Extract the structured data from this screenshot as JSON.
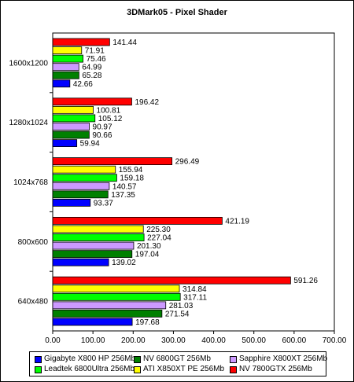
{
  "chart_data": {
    "type": "bar",
    "orientation": "horizontal",
    "title": "3DMark05 - Pixel Shader",
    "xlabel": "",
    "ylabel": "",
    "xlim": [
      0,
      700
    ],
    "x_ticks": [
      "0.00",
      "100.00",
      "200.00",
      "300.00",
      "400.00",
      "500.00",
      "600.00",
      "700.00"
    ],
    "grid": false,
    "legend_position": "bottom",
    "categories": [
      "1600x1200",
      "1280x1024",
      "1024x768",
      "800x600",
      "640x480"
    ],
    "series": [
      {
        "name": "NV 7800GTX 256Mb",
        "color": "#ff0000",
        "values": [
          141.44,
          196.42,
          296.49,
          421.19,
          591.26
        ],
        "labels": [
          "141.44",
          "196.42",
          "296.49",
          "421.19",
          "591.26"
        ]
      },
      {
        "name": "ATI X850XT PE 256Mb",
        "color": "#ffff00",
        "values": [
          71.91,
          100.81,
          155.94,
          225.3,
          314.84
        ],
        "labels": [
          "71.91",
          "100.81",
          "155.94",
          "225.30",
          "314.84"
        ]
      },
      {
        "name": "Leadtek 6800Ultra 256Mb",
        "color": "#00ff00",
        "values": [
          75.46,
          105.12,
          159.18,
          227.04,
          317.11
        ],
        "labels": [
          "75.46",
          "105.12",
          "159.18",
          "227.04",
          "317.11"
        ]
      },
      {
        "name": "Sapphire X800XT 256Mb",
        "color": "#cc99ff",
        "values": [
          64.99,
          90.97,
          140.57,
          201.3,
          281.03
        ],
        "labels": [
          "64.99",
          "90.97",
          "140.57",
          "201.30",
          "281.03"
        ]
      },
      {
        "name": "NV 6800GT 256Mb",
        "color": "#008000",
        "values": [
          65.28,
          90.66,
          137.35,
          197.04,
          271.54
        ],
        "labels": [
          "65.28",
          "90.66",
          "137.35",
          "197.04",
          "271.54"
        ]
      },
      {
        "name": "Gigabyte X800 HP 256Mb",
        "color": "#0000ff",
        "values": [
          42.66,
          59.94,
          93.37,
          139.02,
          197.68
        ],
        "labels": [
          "42.66",
          "59.94",
          "93.37",
          "139.02",
          "197.68"
        ]
      }
    ],
    "legend_order": [
      "Gigabyte X800 HP 256Mb",
      "NV 6800GT 256Mb",
      "Sapphire X800XT 256Mb",
      "Leadtek 6800Ultra 256Mb",
      "ATI X850XT PE 256Mb",
      "NV 7800GTX 256Mb"
    ]
  }
}
